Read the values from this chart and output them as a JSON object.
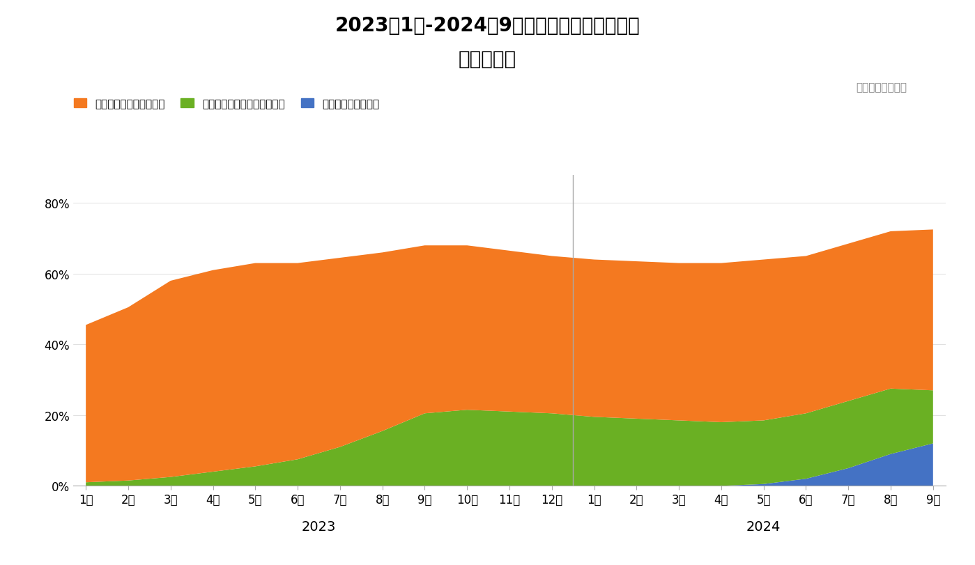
{
  "title_line1": "2023年1月-2024年9月，外星人品牌系列产品",
  "title_line2": "数值铺市率",
  "source_text": "数据来源：马上赢",
  "legend_labels": [
    "外星人电解质水无糖系列",
    "外星人电解质水运动专业系列",
    "外星人低糖电解质水"
  ],
  "legend_colors": [
    "#F47920",
    "#6AB023",
    "#4472C4"
  ],
  "x_labels_2023": [
    "1月",
    "2月",
    "3月",
    "4月",
    "5月",
    "6月",
    "7月",
    "8月",
    "9月",
    "10月",
    "11月",
    "12月"
  ],
  "x_labels_2024": [
    "1月",
    "2月",
    "3月",
    "4月",
    "5月",
    "6月",
    "7月",
    "8月",
    "9月"
  ],
  "year_labels": [
    "2023",
    "2024"
  ],
  "yticks": [
    0,
    0.2,
    0.4,
    0.6,
    0.8
  ],
  "ytick_labels": [
    "0%",
    "20%",
    "40%",
    "60%",
    "80%"
  ],
  "ylim": [
    0,
    0.88
  ],
  "background_color": "#FFFFFF",
  "s_orange": [
    0.445,
    0.49,
    0.555,
    0.57,
    0.575,
    0.555,
    0.535,
    0.505,
    0.475,
    0.465,
    0.455,
    0.445,
    0.445,
    0.445,
    0.445,
    0.45,
    0.455,
    0.445,
    0.445,
    0.445,
    0.455
  ],
  "s_green": [
    0.01,
    0.015,
    0.025,
    0.04,
    0.055,
    0.075,
    0.11,
    0.155,
    0.205,
    0.215,
    0.21,
    0.205,
    0.195,
    0.19,
    0.185,
    0.18,
    0.18,
    0.185,
    0.19,
    0.185,
    0.15
  ],
  "s_blue": [
    0.0,
    0.0,
    0.0,
    0.0,
    0.0,
    0.0,
    0.0,
    0.0,
    0.0,
    0.0,
    0.0,
    0.0,
    0.0,
    0.0,
    0.0,
    0.0,
    0.005,
    0.02,
    0.05,
    0.09,
    0.12
  ]
}
